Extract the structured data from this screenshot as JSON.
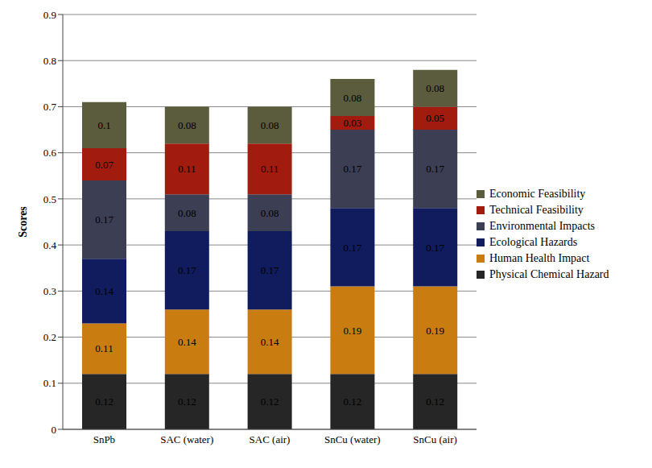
{
  "chart_data": {
    "type": "bar",
    "stacked": true,
    "data_labels": true,
    "grid": true,
    "legend": "right",
    "y_label": "Scores",
    "categories": [
      "SnPb",
      "SAC (water)",
      "SAC (air)",
      "SnCu (water)",
      "SnCu (air)"
    ],
    "ylim": [
      0,
      0.9
    ],
    "yticks": [
      0,
      0.1,
      0.2,
      0.3,
      0.4,
      0.5,
      0.6,
      0.7,
      0.8,
      0.9
    ],
    "series": [
      {
        "name": "Physical Chemical Hazard",
        "color": "#262626",
        "values": [
          0.12,
          0.12,
          0.12,
          0.12,
          0.12
        ]
      },
      {
        "name": "Human Health Impact",
        "color": "#c97d10",
        "values": [
          0.11,
          0.14,
          0.14,
          0.19,
          0.19
        ]
      },
      {
        "name": "Ecological Hazards",
        "color": "#101c5e",
        "values": [
          0.14,
          0.17,
          0.17,
          0.17,
          0.17
        ]
      },
      {
        "name": "Environmental Impacts",
        "color": "#3c3e54",
        "values": [
          0.17,
          0.08,
          0.08,
          0.17,
          0.17
        ]
      },
      {
        "name": "Technical Feasibility",
        "color": "#a11c0f",
        "values": [
          0.07,
          0.11,
          0.11,
          0.03,
          0.05
        ]
      },
      {
        "name": "Economic Feasibility",
        "color": "#5b5b3d",
        "values": [
          0.1,
          0.08,
          0.08,
          0.08,
          0.08
        ]
      }
    ]
  }
}
